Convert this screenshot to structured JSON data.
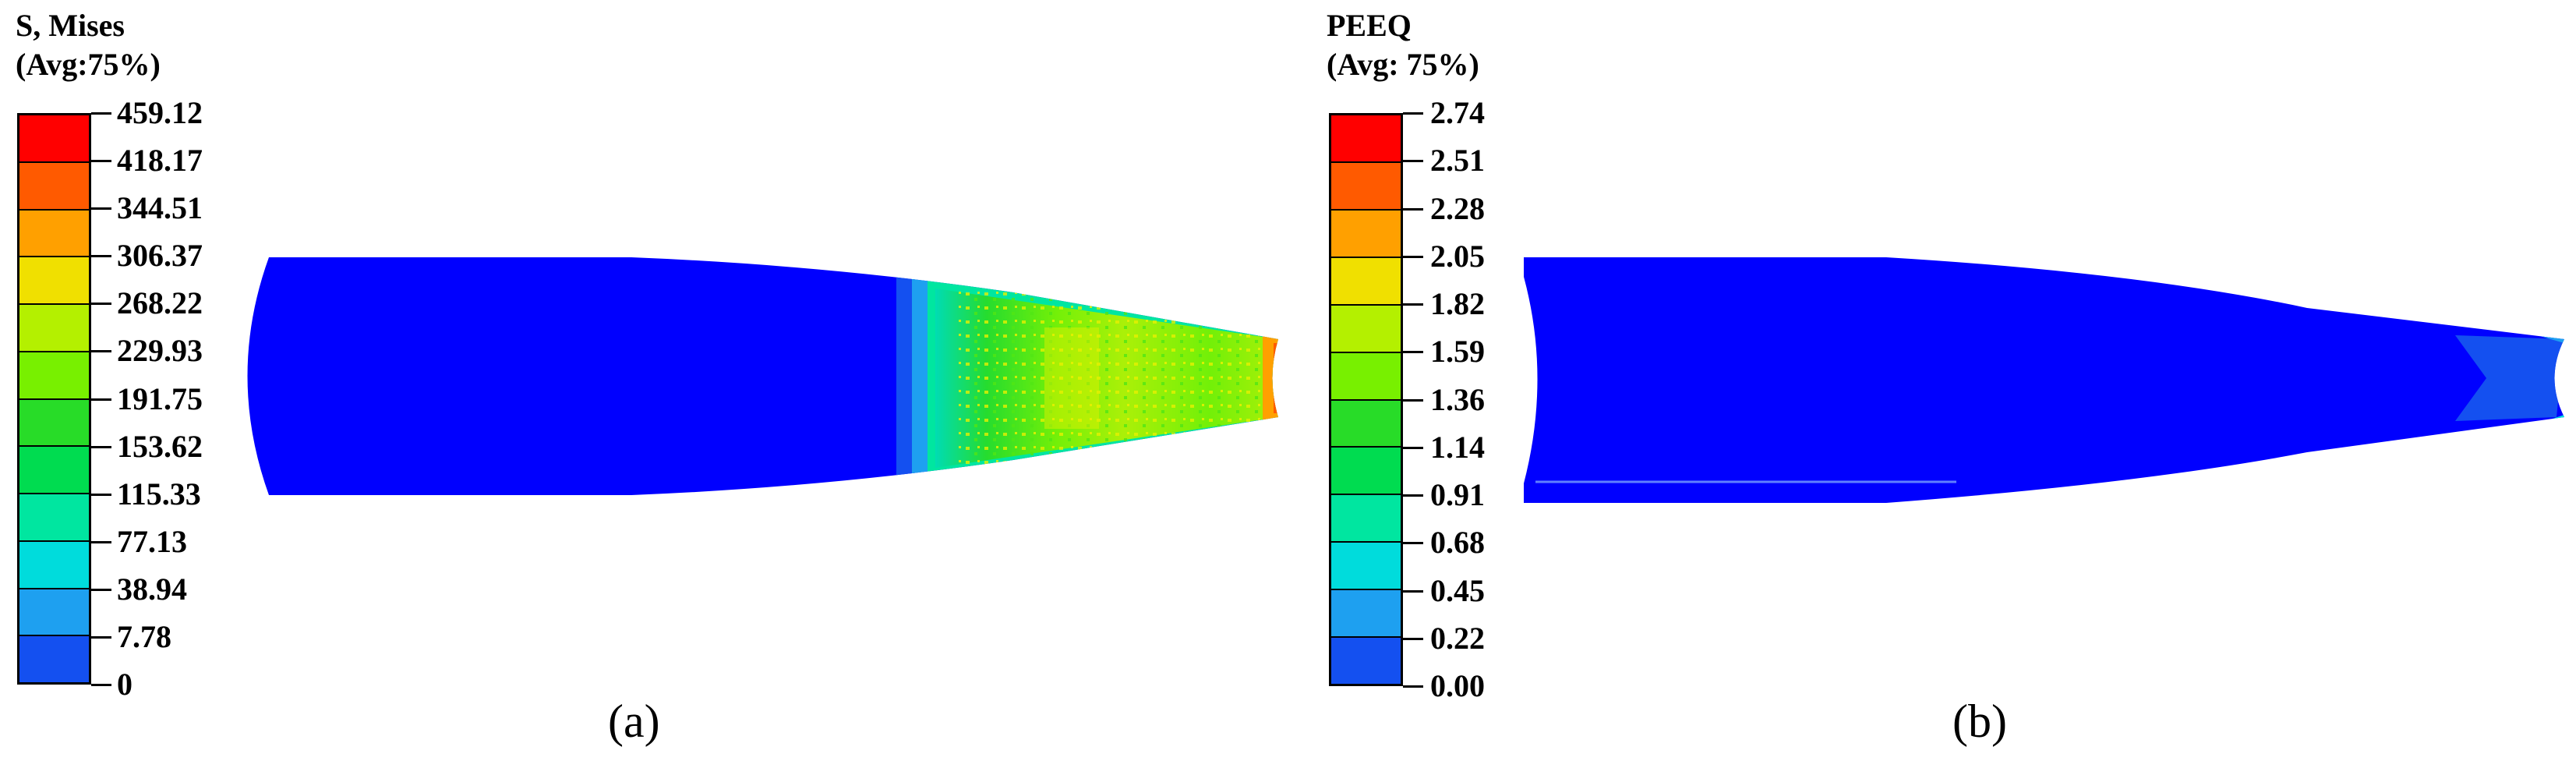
{
  "panels": [
    {
      "id": "a",
      "legend": {
        "title_line1": "S, Mises",
        "title_line2": "(Avg:75%)",
        "labels": [
          "459.12",
          "418.17",
          "344.51",
          "306.37",
          "268.22",
          "229.93",
          "191.75",
          "153.62",
          "115.33",
          "77.13",
          "38.94",
          "7.78",
          "0"
        ],
        "colors": [
          "#ff0000",
          "#ff5a00",
          "#ffa000",
          "#f0e000",
          "#b4f000",
          "#78f000",
          "#28dc28",
          "#00dc50",
          "#00e6a0",
          "#00dcdc",
          "#1ea0f0",
          "#1450f0",
          "#0000ff"
        ]
      },
      "caption": "(a)"
    },
    {
      "id": "b",
      "legend": {
        "title_line1": "PEEQ",
        "title_line2": "(Avg: 75%)",
        "labels": [
          "2.74",
          "2.51",
          "2.28",
          "2.05",
          "1.82",
          "1.59",
          "1.36",
          "1.14",
          "0.91",
          "0.68",
          "0.45",
          "0.22",
          "0.00"
        ],
        "colors": [
          "#ff0000",
          "#ff5a00",
          "#ffa000",
          "#f0e000",
          "#b4f000",
          "#78f000",
          "#28dc28",
          "#00dc50",
          "#00e6a0",
          "#00dcdc",
          "#1ea0f0",
          "#1450f0",
          "#0000ff"
        ]
      },
      "caption": "(b)"
    }
  ]
}
